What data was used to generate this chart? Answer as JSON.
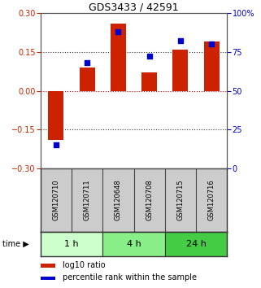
{
  "title": "GDS3433 / 42591",
  "samples": [
    "GSM120710",
    "GSM120711",
    "GSM120648",
    "GSM120708",
    "GSM120715",
    "GSM120716"
  ],
  "log10_ratio": [
    -0.19,
    0.09,
    0.26,
    0.07,
    0.16,
    0.19
  ],
  "percentile_rank": [
    15,
    68,
    88,
    72,
    82,
    80
  ],
  "time_groups": [
    {
      "label": "1 h",
      "start": 0,
      "end": 2,
      "color": "#ccffcc"
    },
    {
      "label": "4 h",
      "start": 2,
      "end": 4,
      "color": "#88ee88"
    },
    {
      "label": "24 h",
      "start": 4,
      "end": 6,
      "color": "#44cc44"
    }
  ],
  "bar_color": "#cc2200",
  "point_color": "#0000cc",
  "ylim_left": [
    -0.3,
    0.3
  ],
  "ylim_right": [
    0,
    100
  ],
  "yticks_left": [
    -0.3,
    -0.15,
    0,
    0.15,
    0.3
  ],
  "yticks_right": [
    0,
    25,
    50,
    75,
    100
  ],
  "hlines": [
    -0.15,
    0.15
  ],
  "hline_zero_color": "#cc0000",
  "hline_color": "#333333",
  "bg_color": "#ffffff",
  "plot_bg": "#ffffff",
  "label_bg": "#cccccc",
  "legend_labels": [
    "log10 ratio",
    "percentile rank within the sample"
  ],
  "bar_width": 0.5,
  "point_size": 25,
  "title_fontsize": 9,
  "tick_fontsize": 7,
  "label_fontsize": 6,
  "time_fontsize": 8
}
